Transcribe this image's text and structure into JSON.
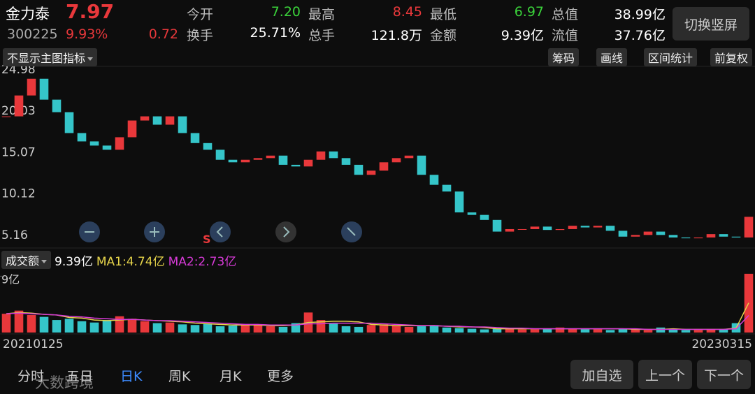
{
  "header": {
    "name": "金力泰",
    "price": "7.97",
    "code": "300225",
    "change_pct": "9.93%",
    "change": "0.72",
    "stats": [
      {
        "label": "今开",
        "value": "7.20",
        "color": "#3ad13a"
      },
      {
        "label": "最高",
        "value": "8.45",
        "color": "#e8383b"
      },
      {
        "label": "最低",
        "value": "6.97",
        "color": "#3ad13a"
      },
      {
        "label": "总值",
        "value": "38.99亿",
        "color": "#ffffff"
      },
      {
        "label": "换手",
        "value": "25.71%",
        "color": "#ffffff"
      },
      {
        "label": "总手",
        "value": "121.8万",
        "color": "#ffffff"
      },
      {
        "label": "金额",
        "value": "9.39亿",
        "color": "#ffffff"
      },
      {
        "label": "流值",
        "value": "37.76亿",
        "color": "#ffffff"
      }
    ],
    "switch_button": "切换竖屏"
  },
  "toolbar": {
    "indicator": "不显示主图指标",
    "buttons": [
      "筹码",
      "画线",
      "区间统计",
      "前复权"
    ]
  },
  "overlay": {
    "signal": "S"
  },
  "chart_data": [
    {
      "type": "candlestick",
      "categories": [
        "20210125",
        null,
        null,
        null,
        null,
        null,
        null,
        null,
        null,
        null,
        null,
        null,
        null,
        null,
        null,
        null,
        null,
        null,
        null,
        null,
        null,
        null,
        null,
        null,
        null,
        null,
        null,
        null,
        null,
        null,
        null,
        null,
        null,
        null,
        null,
        null,
        null,
        null,
        null,
        null,
        null,
        null,
        null,
        null,
        null,
        null,
        null,
        null,
        null,
        null,
        null,
        null,
        null,
        null,
        null,
        null,
        null,
        null,
        null,
        "20230315"
      ],
      "series": [
        {
          "name": "金力泰",
          "up_color": "#e8383b",
          "down_color": "#35c5c9",
          "values": [
            20.0,
            22.5,
            24.5,
            22.0,
            20.5,
            18.0,
            17.0,
            16.5,
            16.0,
            17.5,
            19.5,
            20.0,
            19.0,
            20.0,
            18.0,
            16.8,
            16.0,
            14.8,
            14.5,
            14.8,
            15.0,
            15.3,
            14.2,
            14.0,
            14.8,
            15.8,
            15.0,
            14.2,
            13.0,
            13.5,
            14.5,
            15.0,
            15.3,
            13.0,
            11.8,
            11.0,
            8.5,
            8.2,
            7.6,
            6.2,
            6.5,
            6.5,
            6.8,
            6.4,
            6.5,
            6.9,
            6.7,
            6.9,
            6.3,
            5.6,
            5.8,
            6.2,
            5.8,
            5.5,
            5.4,
            5.5,
            5.9,
            5.6,
            5.5,
            7.97
          ]
        }
      ],
      "ylim": [
        4.49,
        25.9
      ],
      "yticks": [
        5.16,
        10.12,
        15.07,
        20.03,
        24.98
      ],
      "grid": false
    },
    {
      "type": "bar",
      "series": [
        {
          "name": "成交额",
          "up_color": "#e8383b",
          "down_color": "#35c5c9",
          "values": [
            3.0,
            3.5,
            2.8,
            2.5,
            2.0,
            2.2,
            1.8,
            1.6,
            2.0,
            2.6,
            2.2,
            1.8,
            1.5,
            1.6,
            1.3,
            1.2,
            1.4,
            1.0,
            1.1,
            1.2,
            1.3,
            1.0,
            0.9,
            1.5,
            3.2,
            2.0,
            1.4,
            1.0,
            0.9,
            1.2,
            1.3,
            1.1,
            0.9,
            1.0,
            1.2,
            0.8,
            0.7,
            0.6,
            0.5,
            0.6,
            0.7,
            0.5,
            0.5,
            0.6,
            0.8,
            0.6,
            0.5,
            0.5,
            0.4,
            0.6,
            0.5,
            0.4,
            0.8,
            0.5,
            0.4,
            0.4,
            0.5,
            0.5,
            1.5,
            9.39
          ],
          "value_labels": [
            null,
            null,
            null,
            null,
            null,
            null,
            null,
            null,
            null,
            null,
            null,
            null,
            null,
            null,
            null,
            null,
            null,
            null,
            null,
            null,
            null,
            null,
            null,
            null,
            null,
            null,
            null,
            null,
            null,
            null,
            null,
            null,
            null,
            null,
            null,
            null,
            null,
            null,
            null,
            null,
            null,
            null,
            null,
            null,
            null,
            null,
            null,
            null,
            null,
            null,
            null,
            null,
            null,
            null,
            null,
            null,
            null,
            null,
            null,
            "9.39亿"
          ]
        },
        {
          "name": "MA1:4.74亿",
          "type": "line",
          "color": "#e6d44a",
          "values": [
            3.0,
            3.2,
            3.1,
            2.9,
            2.8,
            2.4,
            2.3,
            2.0,
            1.9,
            2.0,
            2.1,
            2.0,
            1.9,
            1.8,
            1.7,
            1.5,
            1.4,
            1.3,
            1.2,
            1.2,
            1.2,
            1.1,
            1.1,
            1.2,
            1.6,
            1.7,
            1.8,
            1.8,
            1.7,
            1.3,
            1.2,
            1.1,
            1.1,
            1.1,
            1.1,
            1.0,
            0.9,
            0.9,
            0.8,
            0.6,
            0.6,
            0.6,
            0.6,
            0.6,
            0.6,
            0.6,
            0.6,
            0.6,
            0.6,
            0.6,
            0.5,
            0.5,
            0.5,
            0.6,
            0.5,
            0.5,
            0.5,
            0.5,
            0.7,
            4.74
          ]
        },
        {
          "name": "MA2:2.73亿",
          "type": "line",
          "color": "#d63ad6",
          "values": [
            3.0,
            3.1,
            3.0,
            2.9,
            2.8,
            2.6,
            2.5,
            2.3,
            2.2,
            2.1,
            2.1,
            2.0,
            1.9,
            1.9,
            1.8,
            1.7,
            1.6,
            1.5,
            1.4,
            1.3,
            1.3,
            1.2,
            1.2,
            1.2,
            1.4,
            1.4,
            1.5,
            1.5,
            1.5,
            1.5,
            1.4,
            1.3,
            1.2,
            1.1,
            1.1,
            1.0,
            1.0,
            0.9,
            0.9,
            0.8,
            0.7,
            0.7,
            0.6,
            0.6,
            0.6,
            0.6,
            0.6,
            0.6,
            0.6,
            0.6,
            0.6,
            0.5,
            0.5,
            0.5,
            0.5,
            0.5,
            0.5,
            0.5,
            0.6,
            2.73
          ]
        }
      ],
      "ylim": [
        0,
        9.6
      ],
      "yticks": [
        {
          "value": 9,
          "label": "9亿"
        }
      ]
    }
  ],
  "tabs": [
    "分时",
    "五日",
    "日K",
    "周K",
    "月K",
    "更多"
  ],
  "active_tab": 2,
  "actions": [
    "加自选",
    "上一个",
    "下一个"
  ],
  "watermark": "大数跨境"
}
